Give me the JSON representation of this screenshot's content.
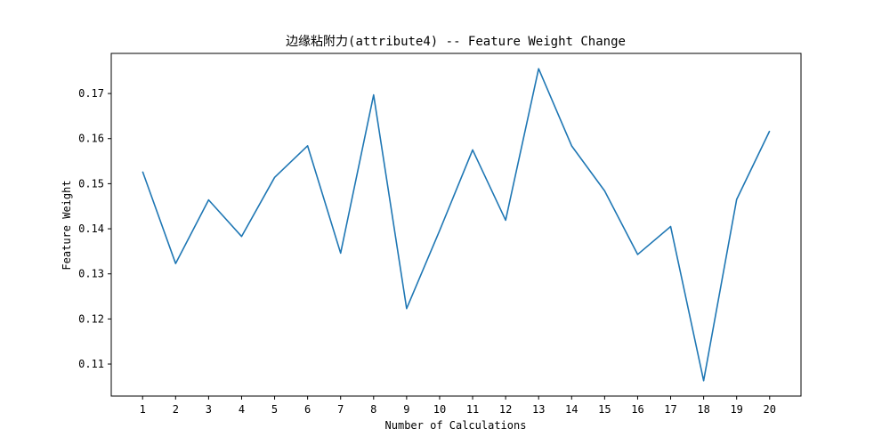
{
  "chart_data": {
    "type": "line",
    "title": "边缘粘附力(attribute4) -- Feature Weight Change",
    "xlabel": "Number of Calculations",
    "ylabel": "Feature Weight",
    "x": [
      1,
      2,
      3,
      4,
      5,
      6,
      7,
      8,
      9,
      10,
      11,
      12,
      13,
      14,
      15,
      16,
      17,
      18,
      19,
      20
    ],
    "series": [
      {
        "values": [
          0.1527,
          0.1323,
          0.1464,
          0.1383,
          0.1514,
          0.1584,
          0.1346,
          0.1697,
          0.1223,
          0.1396,
          0.1575,
          0.1419,
          0.1755,
          0.1584,
          0.1484,
          0.1343,
          0.1405,
          0.1063,
          0.1465,
          0.1617
        ],
        "color": "#1f77b4"
      }
    ],
    "xlim": [
      0.05,
      20.95
    ],
    "ylim": [
      0.1029,
      0.1789
    ],
    "x_ticks": [
      "1",
      "2",
      "3",
      "4",
      "5",
      "6",
      "7",
      "8",
      "9",
      "10",
      "11",
      "12",
      "13",
      "14",
      "15",
      "16",
      "17",
      "18",
      "19",
      "20"
    ],
    "y_ticks": [
      "0.11",
      "0.12",
      "0.13",
      "0.14",
      "0.15",
      "0.16",
      "0.17"
    ],
    "grid": false
  }
}
